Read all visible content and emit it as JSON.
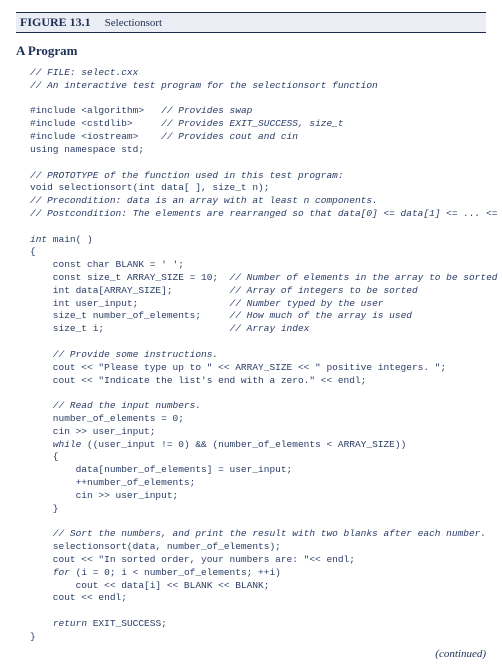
{
  "colors": {
    "text": "#22304f",
    "header_bg": "#eaedf3",
    "border": "#1a2a4a",
    "background": "#ffffff"
  },
  "figure": {
    "label": "FIGURE 13.1",
    "caption": "Selectionsort"
  },
  "section_title": "A Program",
  "code": {
    "l01": "// FILE: select.cxx",
    "l02": "// An interactive test program for the selectionsort function",
    "l03": "#include <algorithm>",
    "l03c": "// Provides swap",
    "l04": "#include <cstdlib>",
    "l04c": "// Provides EXIT_SUCCESS, size_t",
    "l05": "#include <iostream>",
    "l05c": "// Provides cout and cin",
    "l06": "using namespace std;",
    "l07": "// PROTOTYPE of the function used in this test program:",
    "l08": "void selectionsort(int data[ ], size_t n);",
    "l09": "// Precondition: data is an array with at least n components.",
    "l10": "// Postcondition: The elements are rearranged so that data[0] <= data[1] <= ... <= data[n-1].",
    "l11a": "int",
    "l11b": " main( )",
    "l12": "{",
    "l13": "    const char BLANK = ' ';",
    "l14": "    const size_t ARRAY_SIZE = 10;",
    "l14c": "// Number of elements in the array to be sorted",
    "l15": "    int data[ARRAY_SIZE];",
    "l15c": "// Array of integers to be sorted",
    "l16": "    int user_input;",
    "l16c": "// Number typed by the user",
    "l17": "    size_t number_of_elements;",
    "l17c": "// How much of the array is used",
    "l18": "    size_t i;",
    "l18c": "// Array index",
    "l19": "    // Provide some instructions.",
    "l20": "    cout << \"Please type up to \" << ARRAY_SIZE << \" positive integers. \";",
    "l21": "    cout << \"Indicate the list's end with a zero.\" << endl;",
    "l22": "    // Read the input numbers.",
    "l23": "    number_of_elements = 0;",
    "l24": "    cin >> user_input;",
    "l25i": "    ",
    "l25a": "while",
    "l25b": " ((user_input != 0) && (number_of_elements < ARRAY_SIZE))",
    "l26": "    {",
    "l27": "        data[number_of_elements] = user_input;",
    "l28": "        ++number_of_elements;",
    "l29": "        cin >> user_input;",
    "l30": "    }",
    "l31": "    // Sort the numbers, and print the result with two blanks after each number.",
    "l32": "    selectionsort(data, number_of_elements);",
    "l33": "    cout << \"In sorted order, your numbers are: \"<< endl;",
    "l34i": "    ",
    "l34a": "for",
    "l34b": " (i = 0; i < number_of_elements; ++i)",
    "l35": "        cout << data[i] << BLANK << BLANK;",
    "l36": "    cout << endl;",
    "l37i": "    ",
    "l37a": "return",
    "l37b": " EXIT_SUCCESS;",
    "l38": "}"
  },
  "continued": "(continued)"
}
